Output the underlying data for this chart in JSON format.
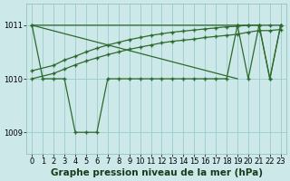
{
  "title": "Graphe pression niveau de la mer (hPa)",
  "line_color": "#2d6a2d",
  "bg_color": "#cce8e8",
  "grid_color": "#99cccc",
  "ylim": [
    1008.6,
    1011.4
  ],
  "xlim": [
    -0.5,
    23.5
  ],
  "yticks": [
    1009,
    1010,
    1011
  ],
  "xticks": [
    0,
    1,
    2,
    3,
    4,
    5,
    6,
    7,
    8,
    9,
    10,
    11,
    12,
    13,
    14,
    15,
    16,
    17,
    18,
    19,
    20,
    21,
    22,
    23
  ],
  "title_fontsize": 7.5,
  "tick_fontsize": 6,
  "series_A": [
    1011,
    1010,
    1010,
    1010,
    1009,
    1009,
    1009,
    1010,
    1010,
    1010,
    1010,
    1010,
    1010,
    1010,
    1010,
    1010,
    1010,
    1010,
    1010,
    1011,
    1010,
    1011,
    1010,
    1011
  ],
  "series_B_x": [
    0,
    19,
    20,
    21,
    22,
    23
  ],
  "series_B_y": [
    1011,
    1011,
    1011,
    1011,
    1010,
    1011
  ],
  "series_C_x": [
    0,
    2,
    3,
    4,
    5,
    6,
    7,
    8,
    9,
    10,
    11,
    12,
    13,
    14,
    15,
    16,
    17,
    18,
    19,
    20,
    21,
    22,
    23
  ],
  "series_C_y": [
    1010.15,
    1010.25,
    1010.35,
    1010.42,
    1010.5,
    1010.57,
    1010.63,
    1010.68,
    1010.73,
    1010.77,
    1010.81,
    1010.84,
    1010.87,
    1010.89,
    1010.91,
    1010.93,
    1010.95,
    1010.97,
    1010.98,
    1011.0,
    1011.0,
    1011.0,
    1011.0
  ],
  "series_D_x": [
    0,
    2,
    3,
    4,
    5,
    6,
    7,
    8,
    9,
    10,
    11,
    12,
    13,
    14,
    15,
    16,
    17,
    18,
    19,
    20,
    21,
    22,
    23
  ],
  "series_D_y": [
    1010.0,
    1010.1,
    1010.18,
    1010.26,
    1010.33,
    1010.39,
    1010.45,
    1010.5,
    1010.55,
    1010.59,
    1010.63,
    1010.67,
    1010.7,
    1010.72,
    1010.74,
    1010.77,
    1010.79,
    1010.81,
    1010.83,
    1010.87,
    1010.9,
    1010.9,
    1010.92
  ]
}
